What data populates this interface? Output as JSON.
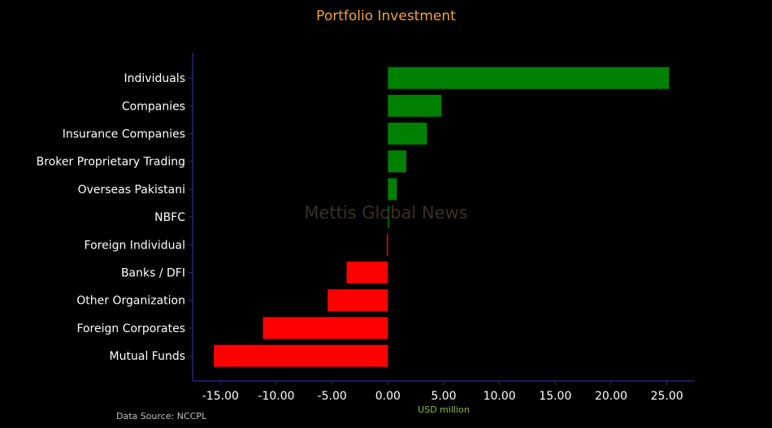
{
  "chart_data": {
    "type": "bar",
    "orientation": "horizontal",
    "title": "Portfolio Investment",
    "xlabel": "USD million",
    "ylabel": "",
    "categories": [
      "Individuals",
      "Companies",
      "Insurance Companies",
      "Broker Proprietary Trading",
      "Overseas Pakistani",
      "NBFC",
      "Foreign Individual",
      "Banks / DFI",
      "Other Organization",
      "Foreign Corporates ",
      "Mutual Funds"
    ],
    "values": [
      25.2,
      4.8,
      3.5,
      1.65,
      0.8,
      0.05,
      -0.1,
      -3.7,
      -5.4,
      -11.2,
      -15.6
    ],
    "xlim": [
      -17.5,
      27.5
    ],
    "xticks": [
      "-15.00",
      "-10.00",
      "-5.00",
      "0.00",
      "5.00",
      "10.00",
      "15.00",
      "20.00",
      "25.00"
    ],
    "xtick_values": [
      -15,
      -10,
      -5,
      0,
      5,
      10,
      15,
      20,
      25
    ],
    "positive_color": "#008000",
    "negative_color": "#ff0000",
    "axis_color": "#2a2a8a",
    "grid": false,
    "legend": "none"
  },
  "watermark": "Mettis Global News",
  "source": "Data Source: NCCPL"
}
